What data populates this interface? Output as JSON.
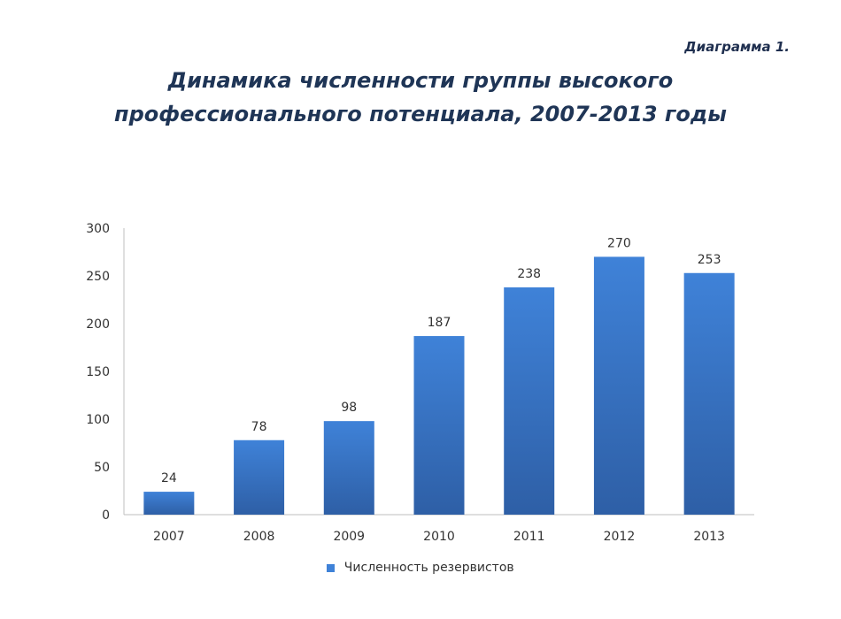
{
  "header": {
    "diagram_label": "Диаграмма 1.",
    "title_line1": "Динамика численности группы высокого",
    "title_line2": "профессионального потенциала,  2007-2013 годы"
  },
  "colors": {
    "bar_top": "#3f82d8",
    "bar_bottom": "#2e5fa6",
    "axis": "#bfbfbf",
    "text": "#333333"
  },
  "chart_data": {
    "type": "bar",
    "categories": [
      "2007",
      "2008",
      "2009",
      "2010",
      "2011",
      "2012",
      "2013"
    ],
    "series": [
      {
        "name": "Численность резервистов",
        "values": [
          24,
          78,
          98,
          187,
          238,
          270,
          253
        ]
      }
    ],
    "y_ticks": [
      0,
      50,
      100,
      150,
      200,
      250,
      300
    ],
    "ylim": [
      0,
      300
    ],
    "grid": false,
    "legend": "bottom",
    "data_labels": true
  }
}
